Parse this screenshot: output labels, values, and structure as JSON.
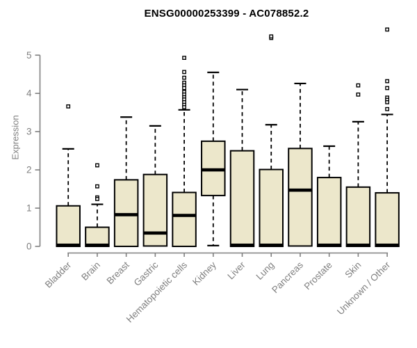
{
  "title": "ENSG00000253399 - AC078852.2",
  "colors": {
    "box_fill": "#ece7cb",
    "box_stroke": "#000000",
    "median": "#000000",
    "whisker": "#000000",
    "axis": "#7f7f7f",
    "tick_label": "#7f7f7f",
    "title": "#000000",
    "background": "#ffffff"
  },
  "chart_data": {
    "type": "boxplot",
    "title": "ENSG00000253399 - AC078852.2",
    "xlabel": "",
    "ylabel": "Expression",
    "ylim": [
      0,
      5.8
    ],
    "yticks": [
      0,
      1,
      2,
      3,
      4,
      5
    ],
    "grid": false,
    "legend": null,
    "categories": [
      "Bladder",
      "Brain",
      "Breast",
      "Gastric",
      "Hematopoietic cells",
      "Kidney",
      "Liver",
      "Lung",
      "Pancreas",
      "Prostate",
      "Skin",
      "Unknown / Other"
    ],
    "series": [
      {
        "name": "Bladder",
        "whisker_low": 0,
        "q1": 0,
        "median": 0.03,
        "q3": 1.06,
        "whisker_high": 2.55,
        "outliers": [
          3.66
        ]
      },
      {
        "name": "Brain",
        "whisker_low": 0,
        "q1": 0,
        "median": 0.03,
        "q3": 0.5,
        "whisker_high": 1.1,
        "outliers": [
          2.12,
          1.57,
          1.28,
          1.24
        ]
      },
      {
        "name": "Breast",
        "whisker_low": 0,
        "q1": 0,
        "median": 0.83,
        "q3": 1.74,
        "whisker_high": 3.38,
        "outliers": []
      },
      {
        "name": "Gastric",
        "whisker_low": 0,
        "q1": 0.01,
        "median": 0.35,
        "q3": 1.88,
        "whisker_high": 3.15,
        "outliers": []
      },
      {
        "name": "Hematopoietic cells",
        "whisker_low": 0,
        "q1": 0,
        "median": 0.81,
        "q3": 1.41,
        "whisker_high": 3.57,
        "outliers": [
          4.93,
          4.56,
          4.41,
          4.28,
          4.21,
          4.14,
          4.04,
          3.97,
          3.9,
          3.84,
          3.77,
          3.7,
          3.64
        ]
      },
      {
        "name": "Kidney",
        "whisker_low": 0.02,
        "q1": 1.33,
        "median": 2.0,
        "q3": 2.75,
        "whisker_high": 4.55,
        "outliers": []
      },
      {
        "name": "Liver",
        "whisker_low": 0,
        "q1": 0,
        "median": 0.03,
        "q3": 2.5,
        "whisker_high": 4.1,
        "outliers": []
      },
      {
        "name": "Lung",
        "whisker_low": 0,
        "q1": 0,
        "median": 0.03,
        "q3": 2.01,
        "whisker_high": 3.18,
        "outliers": [
          5.45,
          5.49
        ]
      },
      {
        "name": "Pancreas",
        "whisker_low": 0,
        "q1": 0.01,
        "median": 1.47,
        "q3": 2.56,
        "whisker_high": 4.26,
        "outliers": []
      },
      {
        "name": "Prostate",
        "whisker_low": 0,
        "q1": 0,
        "median": 0.03,
        "q3": 1.8,
        "whisker_high": 2.62,
        "outliers": []
      },
      {
        "name": "Skin",
        "whisker_low": 0,
        "q1": 0,
        "median": 0.03,
        "q3": 1.55,
        "whisker_high": 3.26,
        "outliers": [
          4.21,
          3.97
        ]
      },
      {
        "name": "Unknown / Other",
        "whisker_low": 0,
        "q1": 0,
        "median": 0.03,
        "q3": 1.4,
        "whisker_high": 3.45,
        "outliers": [
          5.67,
          4.32,
          4.14,
          3.89,
          3.83,
          3.77,
          3.59
        ]
      }
    ]
  }
}
